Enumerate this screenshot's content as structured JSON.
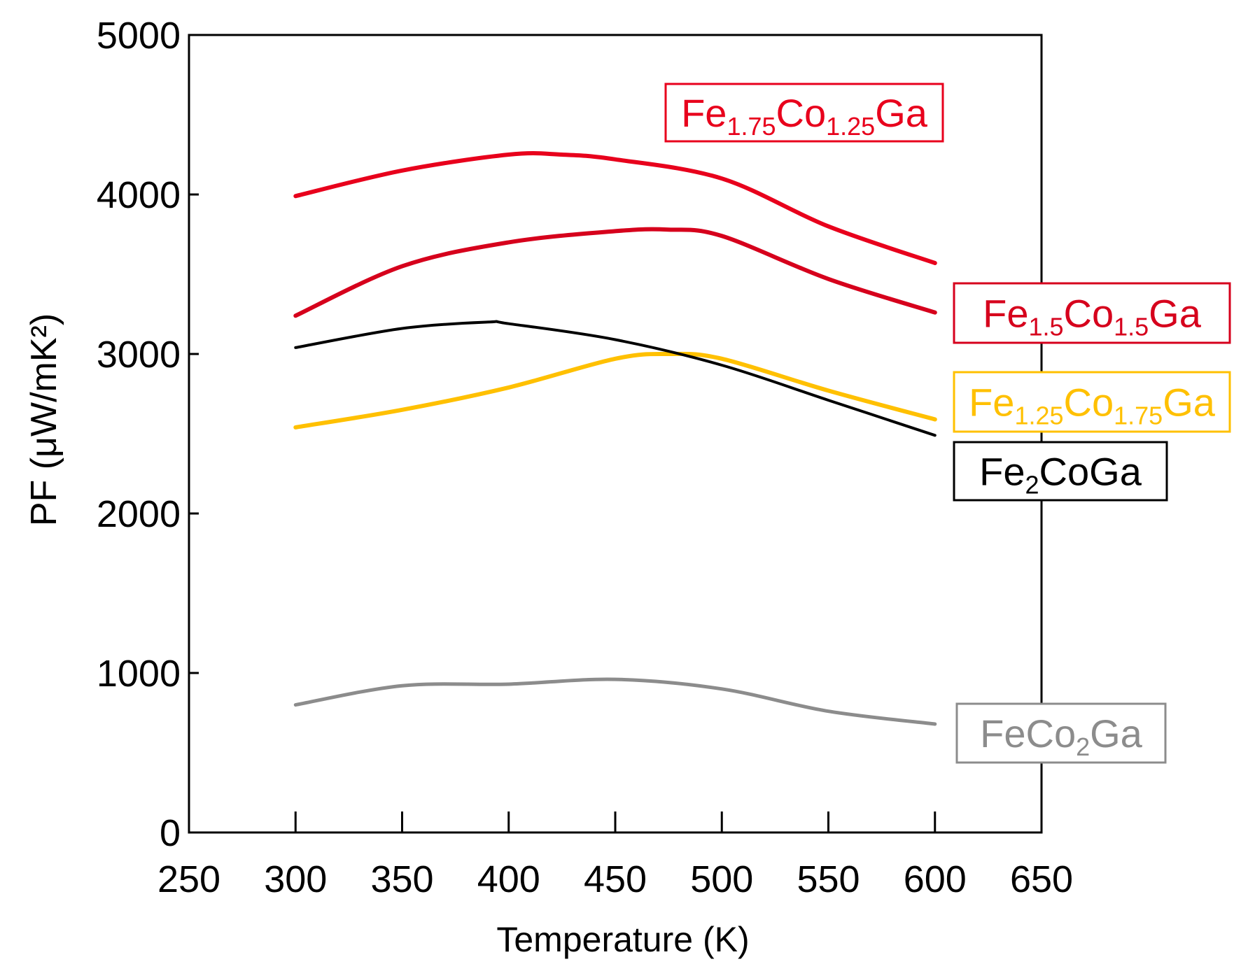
{
  "chart_data": {
    "type": "line",
    "title": "",
    "xlabel": "Temperature (K)",
    "ylabel": "PF (μW/mK²)",
    "xlim": [
      250,
      650
    ],
    "ylim": [
      0,
      5000
    ],
    "x_ticks": [
      250,
      300,
      350,
      400,
      450,
      500,
      550,
      600,
      650
    ],
    "y_ticks": [
      0,
      1000,
      2000,
      3000,
      4000,
      5000
    ],
    "x_minor_ticks": [
      300,
      350,
      400,
      450,
      500,
      550,
      600
    ],
    "grid": false,
    "series": [
      {
        "name": "Fe1.75Co1.25Ga",
        "label_parts": [
          [
            "Fe",
            ""
          ],
          [
            "1.75",
            "sub"
          ],
          [
            "Co",
            ""
          ],
          [
            "1.25",
            "sub"
          ],
          [
            "Ga",
            ""
          ]
        ],
        "color": "#e8001c",
        "x": [
          300,
          350,
          400,
          425,
          450,
          500,
          550,
          600
        ],
        "y": [
          3990,
          4150,
          4250,
          4250,
          4220,
          4100,
          3800,
          3570
        ]
      },
      {
        "name": "Fe1.5Co1.5Ga",
        "label_parts": [
          [
            "Fe",
            ""
          ],
          [
            "1.5",
            "sub"
          ],
          [
            "Co",
            ""
          ],
          [
            "1.5",
            "sub"
          ],
          [
            "Ga",
            ""
          ]
        ],
        "color": "#d6001c",
        "x": [
          300,
          350,
          400,
          450,
          475,
          500,
          550,
          600
        ],
        "y": [
          3240,
          3550,
          3700,
          3770,
          3780,
          3740,
          3470,
          3260
        ]
      },
      {
        "name": "Fe1.25Co1.75Ga",
        "label_parts": [
          [
            "Fe",
            ""
          ],
          [
            "1.25",
            "sub"
          ],
          [
            "Co",
            ""
          ],
          [
            "1.75",
            "sub"
          ],
          [
            "Ga",
            ""
          ]
        ],
        "color": "#ffc000",
        "x": [
          300,
          350,
          400,
          450,
          475,
          500,
          550,
          600
        ],
        "y": [
          2540,
          2650,
          2790,
          2970,
          3000,
          2970,
          2770,
          2590
        ]
      },
      {
        "name": "Fe2CoGa",
        "label_parts": [
          [
            "Fe",
            ""
          ],
          [
            "2",
            "sub"
          ],
          [
            "CoGa",
            ""
          ]
        ],
        "color": "#000000",
        "x": [
          300,
          350,
          390,
          400,
          450,
          500,
          550,
          600
        ],
        "y": [
          3040,
          3160,
          3200,
          3190,
          3090,
          2930,
          2710,
          2490
        ]
      },
      {
        "name": "FeCo2Ga",
        "label_parts": [
          [
            "FeCo",
            ""
          ],
          [
            "2",
            "sub"
          ],
          [
            "Ga",
            ""
          ]
        ],
        "color": "#8c8c8c",
        "x": [
          300,
          350,
          400,
          450,
          500,
          550,
          600
        ],
        "y": [
          800,
          920,
          930,
          960,
          900,
          760,
          680
        ]
      }
    ]
  }
}
